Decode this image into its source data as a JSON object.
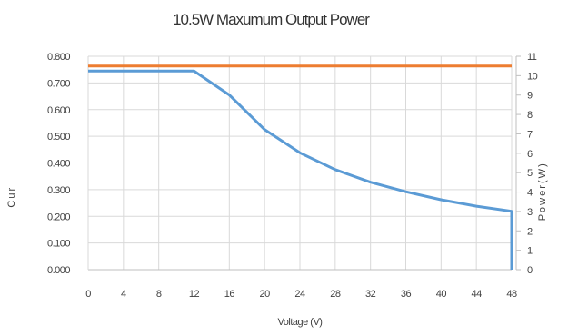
{
  "chart_data": {
    "type": "line",
    "title": "10.5W Maxumum Output Power",
    "xlabel": "Voltage (V)",
    "ylabel_left": "C u r",
    "ylabel_right": "P o w e r ( W )",
    "xlim": [
      0,
      48
    ],
    "ylim_left": [
      0,
      0.8
    ],
    "ylim_right": [
      0,
      11
    ],
    "x_ticks": [
      "0",
      "4",
      "8",
      "12",
      "16",
      "20",
      "24",
      "28",
      "32",
      "36",
      "40",
      "44",
      "48"
    ],
    "y_left_ticks": [
      "0.000",
      "0.100",
      "0.200",
      "0.300",
      "0.400",
      "0.500",
      "0.600",
      "0.700",
      "0.800"
    ],
    "y_right_ticks": [
      "0",
      "1",
      "2",
      "3",
      "4",
      "5",
      "6",
      "7",
      "8",
      "9",
      "10",
      "11"
    ],
    "grid": true,
    "series": [
      {
        "axis": "left",
        "color": "#5B9BD5",
        "x": [
          0,
          12,
          16,
          20,
          24,
          28,
          32,
          36,
          40,
          44,
          48,
          48
        ],
        "y": [
          0.745,
          0.745,
          0.655,
          0.525,
          0.438,
          0.375,
          0.328,
          0.292,
          0.262,
          0.238,
          0.219,
          0.0
        ]
      },
      {
        "axis": "right",
        "color": "#ED7D31",
        "x": [
          0,
          48
        ],
        "y": [
          10.5,
          10.5
        ]
      }
    ]
  }
}
